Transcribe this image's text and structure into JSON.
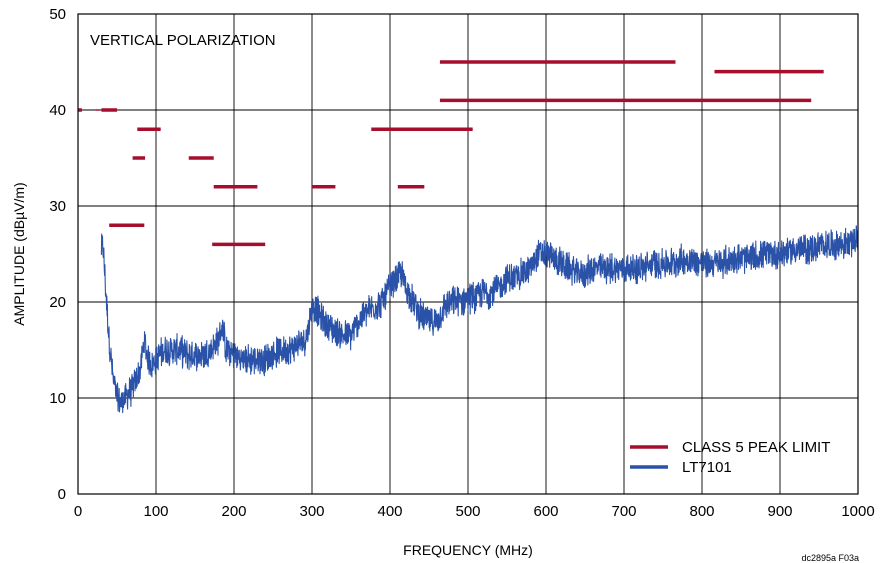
{
  "chart_data": {
    "type": "line",
    "title": "",
    "annotation": "VERTICAL POLARIZATION",
    "xlabel": "FREQUENCY (MHz)",
    "ylabel": "AMPLITUDE (dBµV/m)",
    "xlim": [
      0,
      1000
    ],
    "ylim": [
      0,
      50
    ],
    "xticks": [
      0,
      100,
      200,
      300,
      400,
      500,
      600,
      700,
      800,
      900,
      1000
    ],
    "yticks": [
      0,
      10,
      20,
      30,
      40,
      50
    ],
    "grid": true,
    "legend_position": "bottom-right",
    "figure_id": "dc2895a F03a",
    "colors": {
      "limit": "#a50f2d",
      "signal": "#2a52a8"
    },
    "series": [
      {
        "name": "CLASS 5 PEAK LIMIT",
        "kind": "segments",
        "segments": [
          {
            "x": [
              0,
              5
            ],
            "y": 40
          },
          {
            "x": 25,
            "y": 40,
            "marker": "tick"
          },
          {
            "x": [
              30,
              50
            ],
            "y": 40
          },
          {
            "x": [
              40,
              85
            ],
            "y": 28
          },
          {
            "x": [
              70,
              86
            ],
            "y": 35
          },
          {
            "x": [
              76,
              106
            ],
            "y": 38
          },
          {
            "x": [
              142,
              174
            ],
            "y": 35
          },
          {
            "x": [
              172,
              240
            ],
            "y": 26
          },
          {
            "x": [
              174,
              230
            ],
            "y": 32
          },
          {
            "x": [
              300,
              330
            ],
            "y": 32
          },
          {
            "x": [
              376,
              506
            ],
            "y": 38
          },
          {
            "x": [
              410,
              444
            ],
            "y": 32
          },
          {
            "x": [
              464,
              766
            ],
            "y": 45
          },
          {
            "x": [
              464,
              940
            ],
            "y": 41
          },
          {
            "x": [
              816,
              956
            ],
            "y": 44
          }
        ]
      },
      {
        "name": "LT7101",
        "kind": "noisy-trace",
        "x": [
          30,
          32,
          35,
          40,
          45,
          50,
          55,
          60,
          65,
          70,
          75,
          80,
          85,
          90,
          95,
          100,
          110,
          120,
          130,
          140,
          150,
          160,
          170,
          180,
          185,
          190,
          200,
          210,
          220,
          230,
          240,
          250,
          260,
          270,
          280,
          290,
          295,
          300,
          305,
          310,
          320,
          330,
          340,
          350,
          360,
          370,
          380,
          390,
          400,
          410,
          415,
          420,
          430,
          440,
          450,
          460,
          470,
          480,
          490,
          500,
          510,
          520,
          530,
          540,
          550,
          560,
          570,
          580,
          590,
          600,
          610,
          620,
          630,
          640,
          650,
          660,
          670,
          680,
          690,
          700,
          720,
          740,
          760,
          780,
          800,
          820,
          840,
          860,
          880,
          900,
          920,
          940,
          960,
          980,
          1000
        ],
        "y": [
          25.5,
          26,
          22,
          16,
          12,
          10,
          9.5,
          10,
          10.5,
          11,
          12,
          13,
          16,
          14,
          13.5,
          14,
          15,
          15,
          15,
          14.5,
          14.5,
          14.5,
          15,
          16,
          17.5,
          15,
          14.5,
          14,
          14,
          14,
          14,
          14.5,
          15,
          15,
          15.5,
          16,
          17,
          19.5,
          19.5,
          18.5,
          17.5,
          17,
          16.5,
          16.5,
          18,
          19,
          19.5,
          20,
          21.5,
          22.5,
          23,
          21.5,
          20,
          18.5,
          18,
          18,
          19.5,
          20,
          20,
          20.5,
          20.5,
          21,
          21,
          21.5,
          22.5,
          22.5,
          23,
          23.5,
          25,
          25,
          24.5,
          24,
          23.5,
          23,
          23,
          23.5,
          23.5,
          23.5,
          23.5,
          23.5,
          23.5,
          24,
          24,
          24.5,
          24,
          24,
          24.5,
          24.5,
          25,
          25,
          25.5,
          25.5,
          26,
          26,
          26.5
        ],
        "band_width_db": 1.8
      }
    ]
  }
}
